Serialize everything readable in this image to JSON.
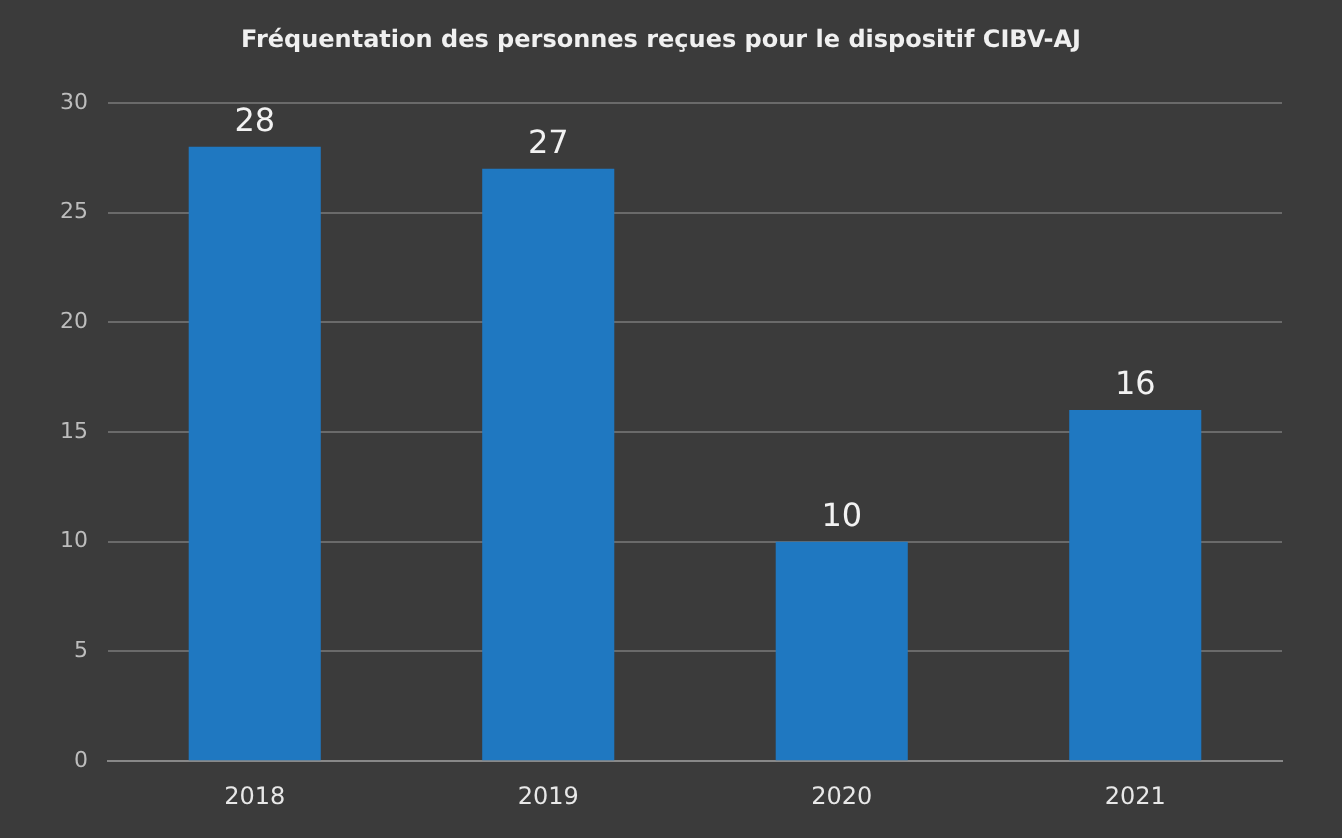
{
  "chart_data": {
    "type": "bar",
    "title": "Fréquentation des personnes reçues pour le dispositif CIBV-AJ",
    "categories": [
      "2018",
      "2019",
      "2020",
      "2021"
    ],
    "values": [
      28,
      27,
      10,
      16
    ],
    "color": "#1f78c1",
    "ylim": [
      0,
      30
    ],
    "yticks": [
      0,
      5,
      10,
      15,
      20,
      25,
      30
    ],
    "grid": "y",
    "data_labels": true
  }
}
